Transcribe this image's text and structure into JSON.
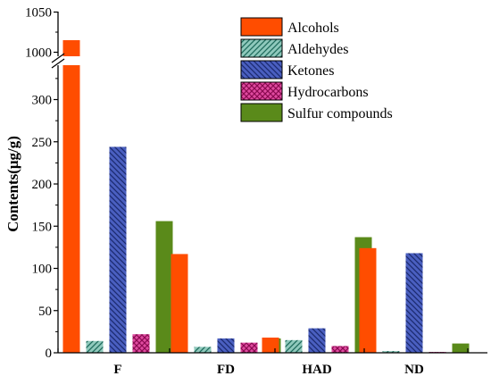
{
  "chart_data": {
    "type": "bar",
    "ylabel": "Contents(μg/g)",
    "xlabel": "",
    "categories": [
      "F",
      "FD",
      "HAD",
      "ND"
    ],
    "series": [
      {
        "name": "Alcohols",
        "color": "#ff4d00",
        "pattern": "solid",
        "values": [
          1015,
          117,
          18,
          124
        ]
      },
      {
        "name": "Aldehydes",
        "color": "#2e8b7a",
        "pattern": "diag-right",
        "values": [
          14,
          7,
          15,
          2
        ]
      },
      {
        "name": "Ketones",
        "color": "#3a4fa8",
        "pattern": "diag-left",
        "values": [
          244,
          17,
          29,
          118
        ]
      },
      {
        "name": "Hydrocarbons",
        "color": "#c8157a",
        "pattern": "crosshatch",
        "values": [
          22,
          12,
          8,
          1
        ]
      },
      {
        "name": "Sulfur compounds",
        "color": "#5a8a1a",
        "pattern": "solid",
        "values": [
          156,
          17,
          137,
          11
        ]
      }
    ],
    "y_axis": {
      "lower_range": [
        0,
        350
      ],
      "lower_ticks": [
        0,
        50,
        100,
        150,
        200,
        250,
        300
      ],
      "upper_range": [
        995,
        1050
      ],
      "upper_ticks": [
        1000,
        1050
      ],
      "broken": true
    },
    "legend_position": "top-right",
    "grid": false
  }
}
